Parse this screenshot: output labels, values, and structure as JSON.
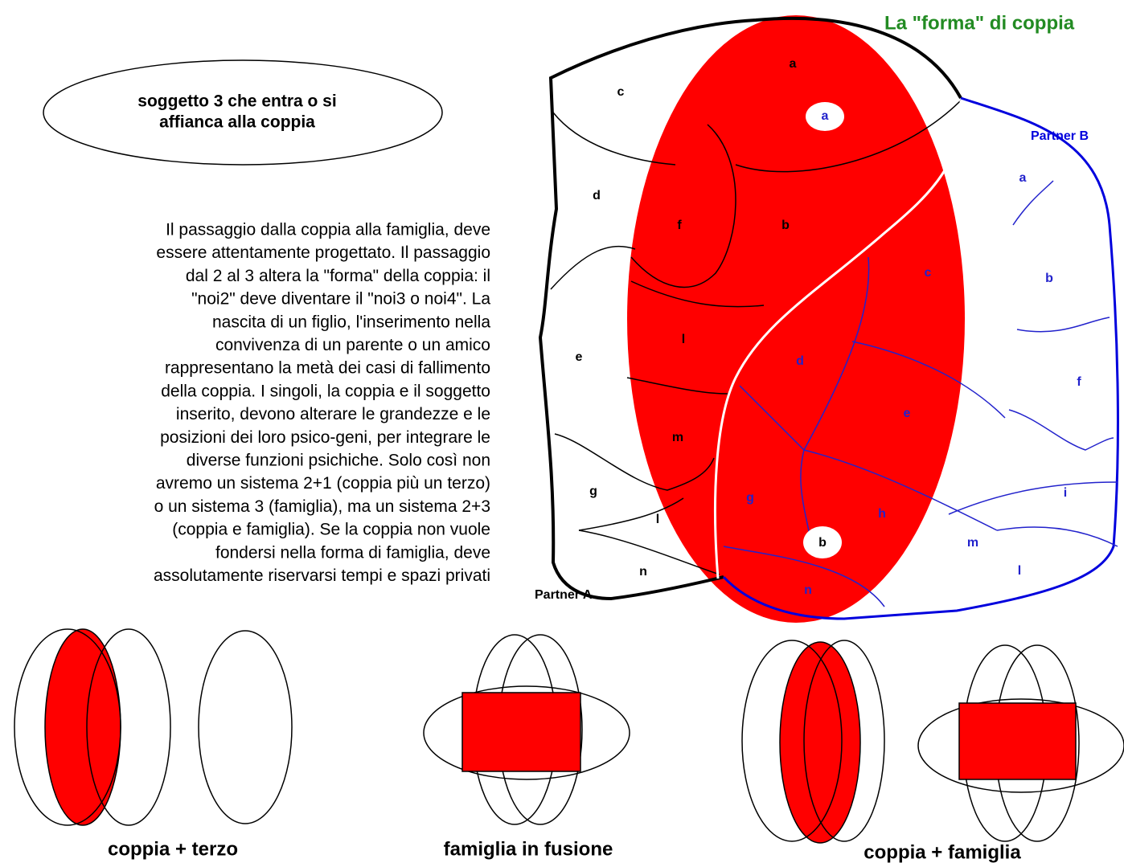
{
  "title": "La \"forma\" di coppia",
  "oval_text": [
    "soggetto 3 che entra o si",
    "affianca alla coppia"
  ],
  "paragraph": [
    "Il passaggio dalla coppia alla famiglia, deve",
    "essere attentamente progettato. Il passaggio",
    "dal 2 al 3 altera la \"forma\" della coppia: il",
    "\"noi2\" deve diventare il \"noi3 o noi4\". La",
    "nascita di un figlio, l'inserimento nella",
    "convivenza di un parente o un amico",
    "rappresentano la metà dei casi di fallimento",
    "della coppia. I singoli, la coppia e il soggetto",
    "inserito, devono alterare le grandezze e le",
    "posizioni dei loro psico-geni, per integrare le",
    "diverse funzioni psichiche. Solo così non",
    "avremo un sistema 2+1 (coppia più un terzo)",
    "o un sistema 3 (famiglia), ma un sistema 2+3",
    "(coppia e famiglia).  Se la coppia non vuole",
    "fondersi nella forma di famiglia, deve",
    "assolutamente riservarsi tempi e spazi privati"
  ],
  "partner_a": "Partner A",
  "partner_b": "Partner B",
  "partner_a_regions": [
    "c",
    "d",
    "e",
    "g",
    "l",
    "n"
  ],
  "shared_regions_a": [
    "a",
    "f",
    "b",
    "l",
    "m"
  ],
  "shared_regions_b": [
    "c",
    "d",
    "e",
    "g",
    "h",
    "n"
  ],
  "partner_b_regions": [
    "a",
    "b",
    "f",
    "i",
    "m",
    "l"
  ],
  "hubs": [
    "a",
    "b"
  ],
  "captions": [
    "coppia + terzo",
    "famiglia in fusione",
    "coppia + famiglia"
  ]
}
